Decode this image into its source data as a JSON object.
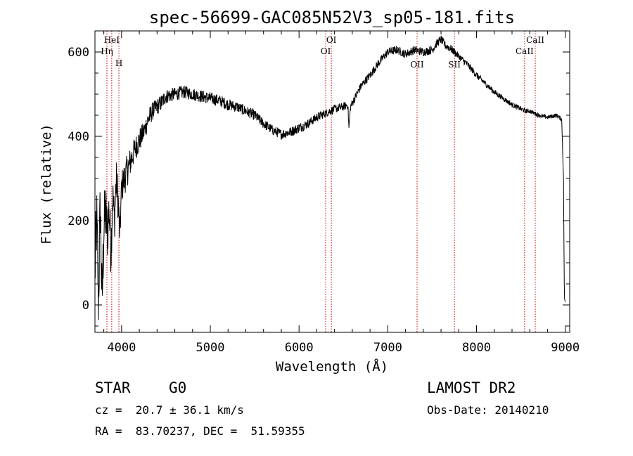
{
  "chart_data": {
    "type": "line",
    "title": "spec-56699-GAC085N52V3_sp05-181.fits",
    "xlabel": "Wavelength (Å)",
    "ylabel": "Flux (relative)",
    "xlim": [
      3700,
      9050
    ],
    "ylim": [
      -65,
      650
    ],
    "x_ticks": [
      4000,
      5000,
      6000,
      7000,
      8000,
      9000
    ],
    "y_ticks": [
      0,
      200,
      400,
      600
    ],
    "grid": false,
    "series": [
      {
        "x": [
          3700,
          3720,
          3740,
          3760,
          3780,
          3800,
          3820,
          3840,
          3860,
          3880,
          3900,
          3920,
          3940,
          3960,
          3980,
          4000,
          4050,
          4100,
          4150,
          4200,
          4250,
          4300,
          4350,
          4400,
          4450,
          4500,
          4600,
          4700,
          4800,
          4900,
          5000,
          5100,
          5200,
          5300,
          5400,
          5500,
          5600,
          5700,
          5800,
          5900,
          6000,
          6100,
          6200,
          6300,
          6400,
          6500,
          6550,
          6562,
          6580,
          6650,
          6700,
          6800,
          6900,
          7000,
          7100,
          7200,
          7300,
          7400,
          7500,
          7550,
          7600,
          7650,
          7700,
          7800,
          7900,
          8000,
          8100,
          8200,
          8300,
          8400,
          8500,
          8550,
          8600,
          8650,
          8700,
          8800,
          8900,
          8960,
          8980,
          8990,
          9000
        ],
        "y": [
          80,
          200,
          10,
          240,
          0,
          180,
          220,
          170,
          230,
          120,
          260,
          200,
          300,
          250,
          160,
          280,
          310,
          340,
          370,
          390,
          410,
          440,
          460,
          470,
          480,
          495,
          500,
          505,
          500,
          495,
          490,
          485,
          475,
          470,
          460,
          450,
          430,
          415,
          405,
          410,
          420,
          430,
          445,
          455,
          465,
          470,
          475,
          420,
          470,
          500,
          520,
          545,
          575,
          600,
          605,
          595,
          605,
          600,
          605,
          620,
          630,
          615,
          610,
          590,
          570,
          545,
          525,
          505,
          490,
          475,
          465,
          460,
          460,
          455,
          450,
          445,
          450,
          440,
          300,
          20,
          0
        ],
        "noise_amplitude": [
          90,
          90,
          90,
          90,
          90,
          80,
          80,
          70,
          70,
          60,
          60,
          50,
          50,
          50,
          40,
          40,
          40,
          35,
          30,
          30,
          25,
          25,
          22,
          20,
          20,
          18,
          16,
          16,
          15,
          15,
          15,
          14,
          14,
          13,
          13,
          13,
          12,
          12,
          12,
          12,
          12,
          11,
          11,
          10,
          10,
          10,
          10,
          5,
          10,
          10,
          10,
          10,
          10,
          10,
          10,
          10,
          10,
          10,
          10,
          10,
          10,
          10,
          10,
          8,
          8,
          8,
          7,
          7,
          6,
          6,
          6,
          6,
          5,
          5,
          5,
          5,
          5,
          5,
          5,
          5,
          5
        ]
      }
    ],
    "line_markers": [
      {
        "label": "Hη",
        "x": 3835,
        "row": "upper"
      },
      {
        "label": "HeI",
        "x": 3889,
        "row": "top"
      },
      {
        "label": "H",
        "x": 3970,
        "row": "lower"
      },
      {
        "label": "OI",
        "x": 6300,
        "row": "upper"
      },
      {
        "label": "OI",
        "x": 6364,
        "row": "top"
      },
      {
        "label": "OII",
        "x": 7330,
        "row": "mid"
      },
      {
        "label": "SII",
        "x": 7751,
        "row": "mid"
      },
      {
        "label": "CaII",
        "x": 8542,
        "row": "upper"
      },
      {
        "label": "CaII",
        "x": 8662,
        "row": "top"
      }
    ],
    "marker_color": "#cc0000"
  },
  "footer": {
    "object_class": "STAR",
    "subclass": "G0",
    "redshift": "cz =  20.7 ± 36.1 km/s",
    "coords": "RA =  83.70237, DEC =  51.59355",
    "survey": "LAMOST DR2",
    "obs_date": "Obs-Date: 20140210"
  }
}
